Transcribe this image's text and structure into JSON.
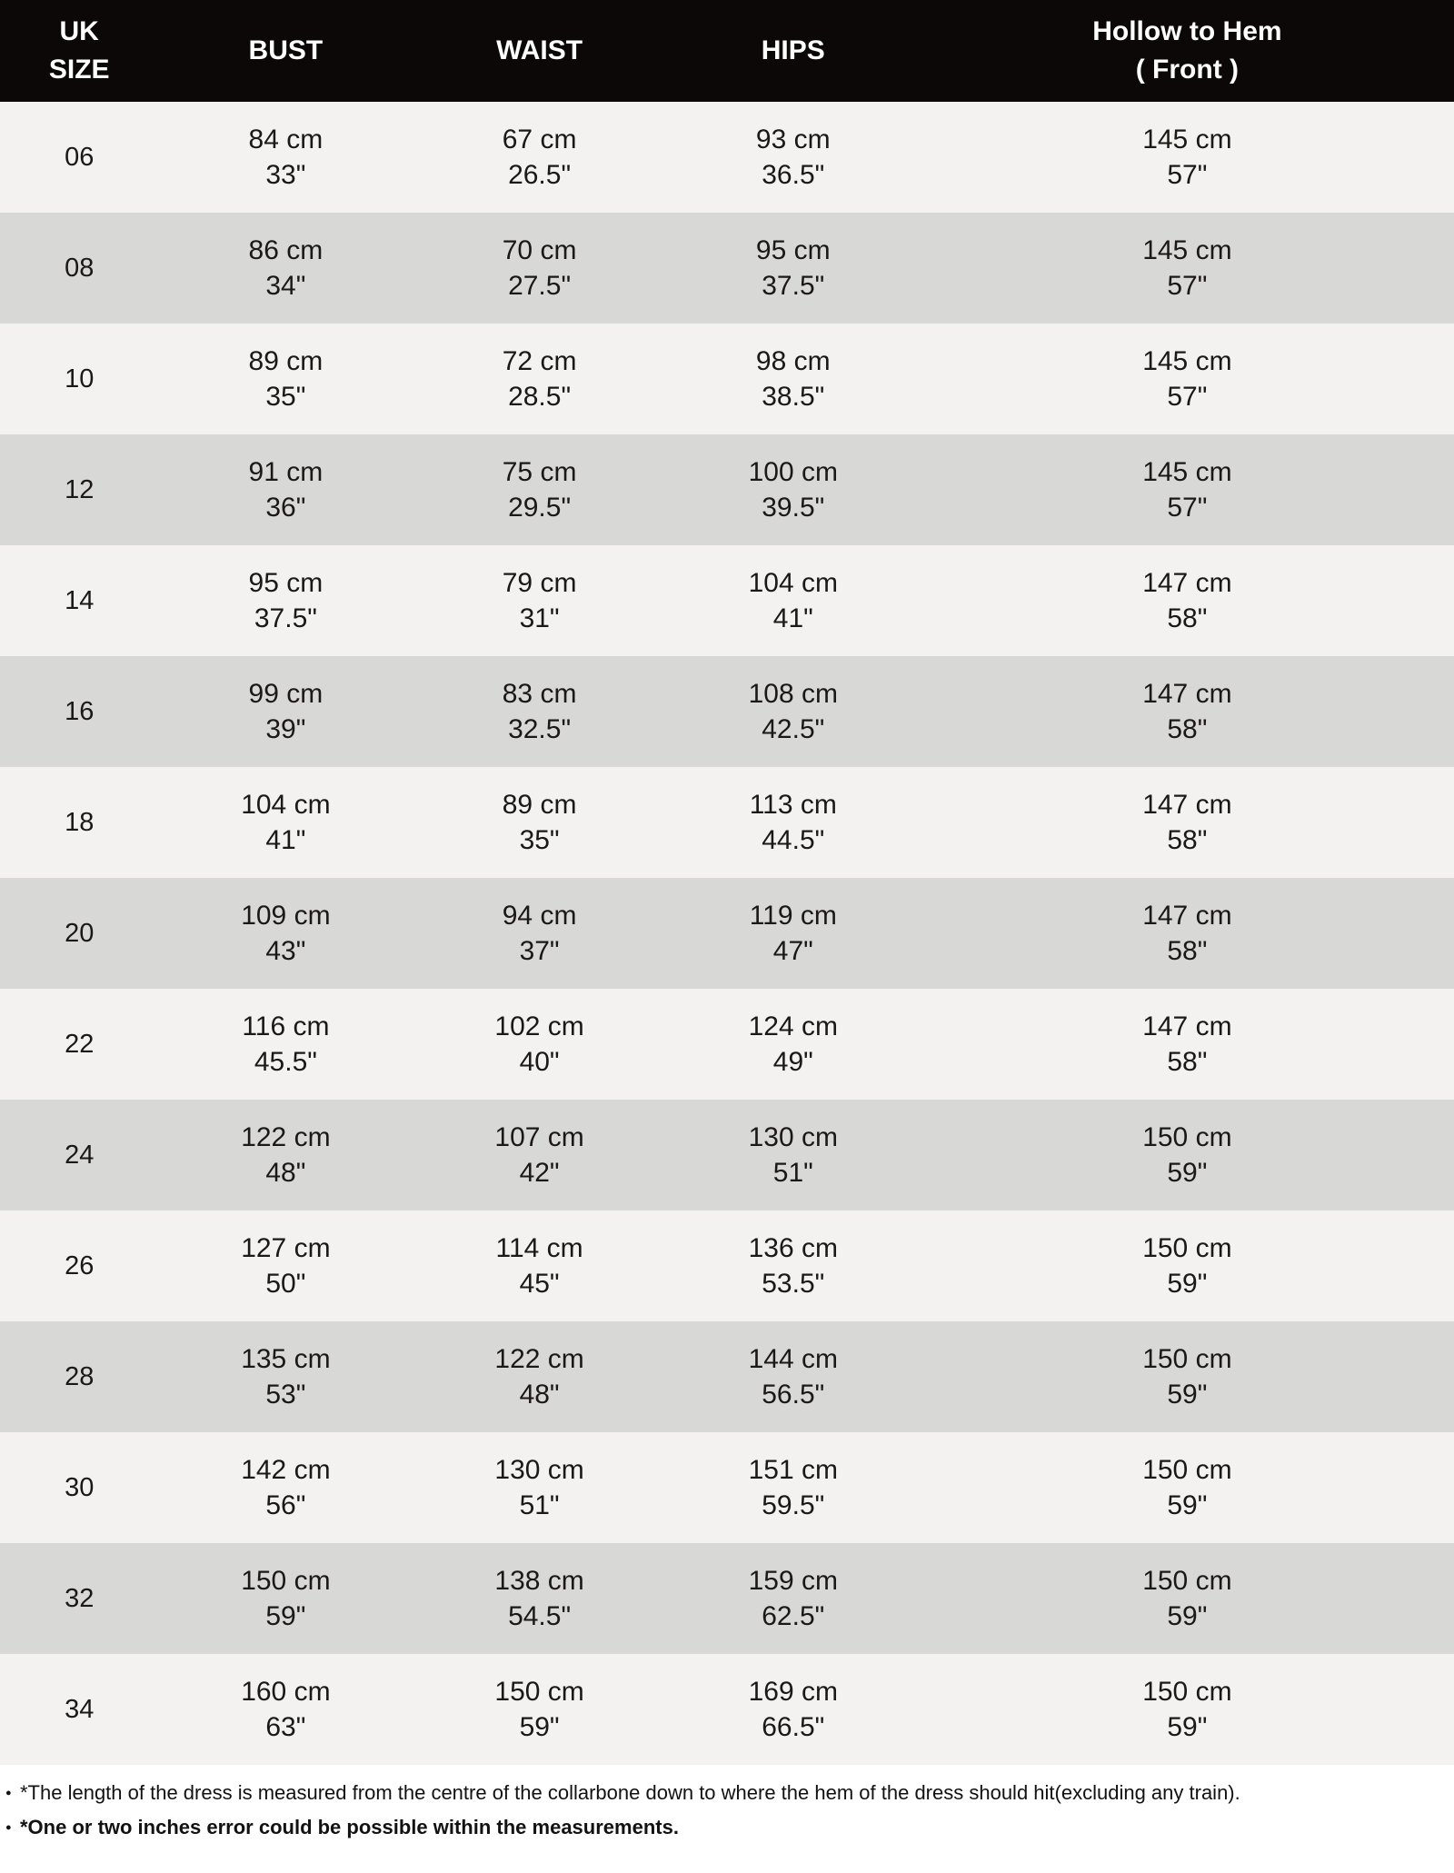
{
  "colors": {
    "header_bg": "#0b0807",
    "header_text": "#ffffff",
    "row_light": "#f4f2f0",
    "row_dark": "#d8d9d6",
    "page_bg": "#ffffff",
    "text": "#1b1815"
  },
  "chart_data": {
    "type": "table",
    "headers": [
      "UK\nSIZE",
      "BUST",
      "WAIST",
      "HIPS",
      "Hollow to Hem\n( Front )"
    ],
    "rows": [
      {
        "size": "06",
        "bust_cm": "84 cm",
        "bust_in": "33\"",
        "waist_cm": "67 cm",
        "waist_in": "26.5\"",
        "hips_cm": "93 cm",
        "hips_in": "36.5\"",
        "hollow_cm": "145 cm",
        "hollow_in": "57\""
      },
      {
        "size": "08",
        "bust_cm": "86 cm",
        "bust_in": "34\"",
        "waist_cm": "70 cm",
        "waist_in": "27.5\"",
        "hips_cm": "95 cm",
        "hips_in": "37.5\"",
        "hollow_cm": "145 cm",
        "hollow_in": "57\""
      },
      {
        "size": "10",
        "bust_cm": "89 cm",
        "bust_in": "35\"",
        "waist_cm": "72 cm",
        "waist_in": "28.5\"",
        "hips_cm": "98 cm",
        "hips_in": "38.5\"",
        "hollow_cm": "145 cm",
        "hollow_in": "57\""
      },
      {
        "size": "12",
        "bust_cm": "91 cm",
        "bust_in": "36\"",
        "waist_cm": "75 cm",
        "waist_in": "29.5\"",
        "hips_cm": "100 cm",
        "hips_in": "39.5\"",
        "hollow_cm": "145 cm",
        "hollow_in": "57\""
      },
      {
        "size": "14",
        "bust_cm": "95 cm",
        "bust_in": "37.5\"",
        "waist_cm": "79 cm",
        "waist_in": "31\"",
        "hips_cm": "104 cm",
        "hips_in": "41\"",
        "hollow_cm": "147 cm",
        "hollow_in": "58\""
      },
      {
        "size": "16",
        "bust_cm": "99 cm",
        "bust_in": "39\"",
        "waist_cm": "83 cm",
        "waist_in": "32.5\"",
        "hips_cm": "108 cm",
        "hips_in": "42.5\"",
        "hollow_cm": "147 cm",
        "hollow_in": "58\""
      },
      {
        "size": "18",
        "bust_cm": "104 cm",
        "bust_in": "41\"",
        "waist_cm": "89 cm",
        "waist_in": "35\"",
        "hips_cm": "113 cm",
        "hips_in": "44.5\"",
        "hollow_cm": "147 cm",
        "hollow_in": "58\""
      },
      {
        "size": "20",
        "bust_cm": "109 cm",
        "bust_in": "43\"",
        "waist_cm": "94 cm",
        "waist_in": "37\"",
        "hips_cm": "119 cm",
        "hips_in": "47\"",
        "hollow_cm": "147 cm",
        "hollow_in": "58\""
      },
      {
        "size": "22",
        "bust_cm": "116 cm",
        "bust_in": "45.5\"",
        "waist_cm": "102 cm",
        "waist_in": "40\"",
        "hips_cm": "124 cm",
        "hips_in": "49\"",
        "hollow_cm": "147 cm",
        "hollow_in": "58\""
      },
      {
        "size": "24",
        "bust_cm": "122 cm",
        "bust_in": "48\"",
        "waist_cm": "107 cm",
        "waist_in": "42\"",
        "hips_cm": "130 cm",
        "hips_in": "51\"",
        "hollow_cm": "150 cm",
        "hollow_in": "59\""
      },
      {
        "size": "26",
        "bust_cm": "127 cm",
        "bust_in": "50\"",
        "waist_cm": "114 cm",
        "waist_in": "45\"",
        "hips_cm": "136 cm",
        "hips_in": "53.5\"",
        "hollow_cm": "150 cm",
        "hollow_in": "59\""
      },
      {
        "size": "28",
        "bust_cm": "135 cm",
        "bust_in": "53\"",
        "waist_cm": "122 cm",
        "waist_in": "48\"",
        "hips_cm": "144 cm",
        "hips_in": "56.5\"",
        "hollow_cm": "150 cm",
        "hollow_in": "59\""
      },
      {
        "size": "30",
        "bust_cm": "142 cm",
        "bust_in": "56\"",
        "waist_cm": "130 cm",
        "waist_in": "51\"",
        "hips_cm": "151 cm",
        "hips_in": "59.5\"",
        "hollow_cm": "150 cm",
        "hollow_in": "59\""
      },
      {
        "size": "32",
        "bust_cm": "150 cm",
        "bust_in": "59\"",
        "waist_cm": "138 cm",
        "waist_in": "54.5\"",
        "hips_cm": "159 cm",
        "hips_in": "62.5\"",
        "hollow_cm": "150 cm",
        "hollow_in": "59\""
      },
      {
        "size": "34",
        "bust_cm": "160 cm",
        "bust_in": "63\"",
        "waist_cm": "150 cm",
        "waist_in": "59\"",
        "hips_cm": "169 cm",
        "hips_in": "66.5\"",
        "hollow_cm": "150 cm",
        "hollow_in": "59\""
      }
    ]
  },
  "notes": [
    {
      "text": "*The length of the dress is measured from the centre of the collarbone down to where the hem of the dress should hit(excluding any train)."
    },
    {
      "text": "*One or two inches error could be possible within the measurements."
    }
  ]
}
